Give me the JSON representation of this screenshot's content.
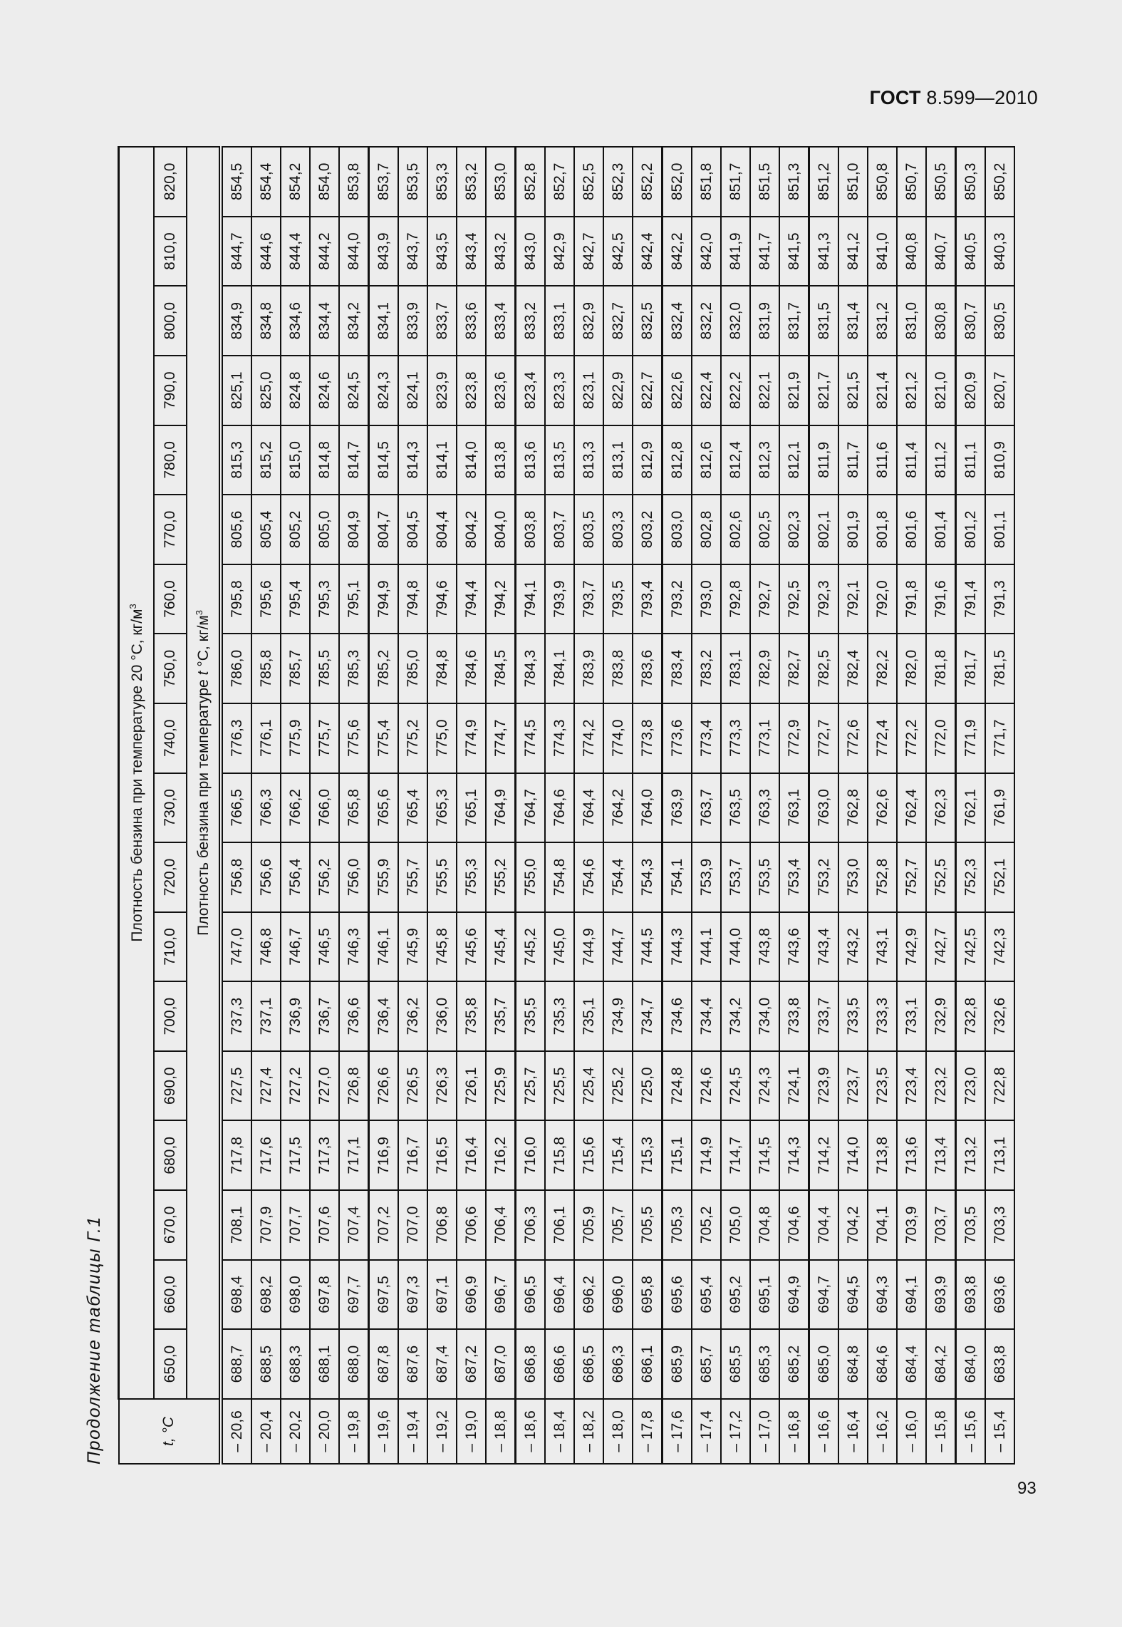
{
  "header": {
    "standard_bold": "ГОСТ",
    "standard_number": "8.599—2010"
  },
  "caption": "Продолжение таблицы Г.1",
  "page_number": "93",
  "table": {
    "t_header": "t, °С",
    "group_title_20": "Плотность бензина при температуре 20 °С, кг/м",
    "group_title_t_prefix": "Плотность бензина при температуре ",
    "group_title_t_var": "t",
    "group_title_t_suffix": " °С, кг/м",
    "superscript": "3",
    "density_20_columns": [
      "650,0",
      "660,0",
      "670,0",
      "680,0",
      "690,0",
      "700,0",
      "710,0",
      "720,0",
      "730,0",
      "740,0",
      "750,0",
      "760,0",
      "770,0",
      "780,0",
      "790,0",
      "800,0",
      "810,0",
      "820,0"
    ],
    "rows": [
      {
        "t": "– 20,6",
        "v": [
          "688,7",
          "698,4",
          "708,1",
          "717,8",
          "727,5",
          "737,3",
          "747,0",
          "756,8",
          "766,5",
          "776,3",
          "786,0",
          "795,8",
          "805,6",
          "815,3",
          "825,1",
          "834,9",
          "844,7",
          "854,5"
        ]
      },
      {
        "t": "– 20,4",
        "v": [
          "688,5",
          "698,2",
          "707,9",
          "717,6",
          "727,4",
          "737,1",
          "746,8",
          "756,6",
          "766,3",
          "776,1",
          "785,8",
          "795,6",
          "805,4",
          "815,2",
          "825,0",
          "834,8",
          "844,6",
          "854,4"
        ]
      },
      {
        "t": "– 20,2",
        "v": [
          "688,3",
          "698,0",
          "707,7",
          "717,5",
          "727,2",
          "736,9",
          "746,7",
          "756,4",
          "766,2",
          "775,9",
          "785,7",
          "795,4",
          "805,2",
          "815,0",
          "824,8",
          "834,6",
          "844,4",
          "854,2"
        ]
      },
      {
        "t": "– 20,0",
        "v": [
          "688,1",
          "697,8",
          "707,6",
          "717,3",
          "727,0",
          "736,7",
          "746,5",
          "756,2",
          "766,0",
          "775,7",
          "785,5",
          "795,3",
          "805,0",
          "814,8",
          "824,6",
          "834,4",
          "844,2",
          "854,0"
        ]
      },
      {
        "t": "– 19,8",
        "v": [
          "688,0",
          "697,7",
          "707,4",
          "717,1",
          "726,8",
          "736,6",
          "746,3",
          "756,0",
          "765,8",
          "775,6",
          "785,3",
          "795,1",
          "804,9",
          "814,7",
          "824,5",
          "834,2",
          "844,0",
          "853,8"
        ]
      },
      {
        "t": "– 19,6",
        "v": [
          "687,8",
          "697,5",
          "707,2",
          "716,9",
          "726,6",
          "736,4",
          "746,1",
          "755,9",
          "765,6",
          "775,4",
          "785,2",
          "794,9",
          "804,7",
          "814,5",
          "824,3",
          "834,1",
          "843,9",
          "853,7"
        ]
      },
      {
        "t": "– 19,4",
        "v": [
          "687,6",
          "697,3",
          "707,0",
          "716,7",
          "726,5",
          "736,2",
          "745,9",
          "755,7",
          "765,4",
          "775,2",
          "785,0",
          "794,8",
          "804,5",
          "814,3",
          "824,1",
          "833,9",
          "843,7",
          "853,5"
        ]
      },
      {
        "t": "– 19,2",
        "v": [
          "687,4",
          "697,1",
          "706,8",
          "716,5",
          "726,3",
          "736,0",
          "745,8",
          "755,5",
          "765,3",
          "775,0",
          "784,8",
          "794,6",
          "804,4",
          "814,1",
          "823,9",
          "833,7",
          "843,5",
          "853,3"
        ]
      },
      {
        "t": "– 19,0",
        "v": [
          "687,2",
          "696,9",
          "706,6",
          "716,4",
          "726,1",
          "735,8",
          "745,6",
          "755,3",
          "765,1",
          "774,9",
          "784,6",
          "794,4",
          "804,2",
          "814,0",
          "823,8",
          "833,6",
          "843,4",
          "853,2"
        ]
      },
      {
        "t": "– 18,8",
        "v": [
          "687,0",
          "696,7",
          "706,4",
          "716,2",
          "725,9",
          "735,7",
          "745,4",
          "755,2",
          "764,9",
          "774,7",
          "784,5",
          "794,2",
          "804,0",
          "813,8",
          "823,6",
          "833,4",
          "843,2",
          "853,0"
        ]
      },
      {
        "t": "– 18,6",
        "v": [
          "686,8",
          "696,5",
          "706,3",
          "716,0",
          "725,7",
          "735,5",
          "745,2",
          "755,0",
          "764,7",
          "774,5",
          "784,3",
          "794,1",
          "803,8",
          "813,6",
          "823,4",
          "833,2",
          "843,0",
          "852,8"
        ]
      },
      {
        "t": "– 18,4",
        "v": [
          "686,6",
          "696,4",
          "706,1",
          "715,8",
          "725,5",
          "735,3",
          "745,0",
          "754,8",
          "764,6",
          "774,3",
          "784,1",
          "793,9",
          "803,7",
          "813,5",
          "823,3",
          "833,1",
          "842,9",
          "852,7"
        ]
      },
      {
        "t": "– 18,2",
        "v": [
          "686,5",
          "696,2",
          "705,9",
          "715,6",
          "725,4",
          "735,1",
          "744,9",
          "754,6",
          "764,4",
          "774,2",
          "783,9",
          "793,7",
          "803,5",
          "813,3",
          "823,1",
          "832,9",
          "842,7",
          "852,5"
        ]
      },
      {
        "t": "– 18,0",
        "v": [
          "686,3",
          "696,0",
          "705,7",
          "715,4",
          "725,2",
          "734,9",
          "744,7",
          "754,4",
          "764,2",
          "774,0",
          "783,8",
          "793,5",
          "803,3",
          "813,1",
          "822,9",
          "832,7",
          "842,5",
          "852,3"
        ]
      },
      {
        "t": "– 17,8",
        "v": [
          "686,1",
          "695,8",
          "705,5",
          "715,3",
          "725,0",
          "734,7",
          "744,5",
          "754,3",
          "764,0",
          "773,8",
          "783,6",
          "793,4",
          "803,2",
          "812,9",
          "822,7",
          "832,5",
          "842,4",
          "852,2"
        ]
      },
      {
        "t": "– 17,6",
        "v": [
          "685,9",
          "695,6",
          "705,3",
          "715,1",
          "724,8",
          "734,6",
          "744,3",
          "754,1",
          "763,9",
          "773,6",
          "783,4",
          "793,2",
          "803,0",
          "812,8",
          "822,6",
          "832,4",
          "842,2",
          "852,0"
        ]
      },
      {
        "t": "– 17,4",
        "v": [
          "685,7",
          "695,4",
          "705,2",
          "714,9",
          "724,6",
          "734,4",
          "744,1",
          "753,9",
          "763,7",
          "773,4",
          "783,2",
          "793,0",
          "802,8",
          "812,6",
          "822,4",
          "832,2",
          "842,0",
          "851,8"
        ]
      },
      {
        "t": "– 17,2",
        "v": [
          "685,5",
          "695,2",
          "705,0",
          "714,7",
          "724,5",
          "734,2",
          "744,0",
          "753,7",
          "763,5",
          "773,3",
          "783,1",
          "792,8",
          "802,6",
          "812,4",
          "822,2",
          "832,0",
          "841,9",
          "851,7"
        ]
      },
      {
        "t": "– 17,0",
        "v": [
          "685,3",
          "695,1",
          "704,8",
          "714,5",
          "724,3",
          "734,0",
          "743,8",
          "753,5",
          "763,3",
          "773,1",
          "782,9",
          "792,7",
          "802,5",
          "812,3",
          "822,1",
          "831,9",
          "841,7",
          "851,5"
        ]
      },
      {
        "t": "– 16,8",
        "v": [
          "685,2",
          "694,9",
          "704,6",
          "714,3",
          "724,1",
          "733,8",
          "743,6",
          "753,4",
          "763,1",
          "772,9",
          "782,7",
          "792,5",
          "802,3",
          "812,1",
          "821,9",
          "831,7",
          "841,5",
          "851,3"
        ]
      },
      {
        "t": "– 16,6",
        "v": [
          "685,0",
          "694,7",
          "704,4",
          "714,2",
          "723,9",
          "733,7",
          "743,4",
          "753,2",
          "763,0",
          "772,7",
          "782,5",
          "792,3",
          "802,1",
          "811,9",
          "821,7",
          "831,5",
          "841,3",
          "851,2"
        ]
      },
      {
        "t": "– 16,4",
        "v": [
          "684,8",
          "694,5",
          "704,2",
          "714,0",
          "723,7",
          "733,5",
          "743,2",
          "753,0",
          "762,8",
          "772,6",
          "782,4",
          "792,1",
          "801,9",
          "811,7",
          "821,5",
          "831,4",
          "841,2",
          "851,0"
        ]
      },
      {
        "t": "– 16,2",
        "v": [
          "684,6",
          "694,3",
          "704,1",
          "713,8",
          "723,5",
          "733,3",
          "743,1",
          "752,8",
          "762,6",
          "772,4",
          "782,2",
          "792,0",
          "801,8",
          "811,6",
          "821,4",
          "831,2",
          "841,0",
          "850,8"
        ]
      },
      {
        "t": "– 16,0",
        "v": [
          "684,4",
          "694,1",
          "703,9",
          "713,6",
          "723,4",
          "733,1",
          "742,9",
          "752,7",
          "762,4",
          "772,2",
          "782,0",
          "791,8",
          "801,6",
          "811,4",
          "821,2",
          "831,0",
          "840,8",
          "850,7"
        ]
      },
      {
        "t": "– 15,8",
        "v": [
          "684,2",
          "693,9",
          "703,7",
          "713,4",
          "723,2",
          "732,9",
          "742,7",
          "752,5",
          "762,3",
          "772,0",
          "781,8",
          "791,6",
          "801,4",
          "811,2",
          "821,0",
          "830,8",
          "840,7",
          "850,5"
        ]
      },
      {
        "t": "– 15,6",
        "v": [
          "684,0",
          "693,8",
          "703,5",
          "713,2",
          "723,0",
          "732,8",
          "742,5",
          "752,3",
          "762,1",
          "771,9",
          "781,7",
          "791,4",
          "801,2",
          "811,1",
          "820,9",
          "830,7",
          "840,5",
          "850,3"
        ]
      },
      {
        "t": "– 15,4",
        "v": [
          "683,8",
          "693,6",
          "703,3",
          "713,1",
          "722,8",
          "732,6",
          "742,3",
          "752,1",
          "761,9",
          "771,7",
          "781,5",
          "791,3",
          "801,1",
          "810,9",
          "820,7",
          "830,5",
          "840,3",
          "850,2"
        ]
      }
    ]
  }
}
